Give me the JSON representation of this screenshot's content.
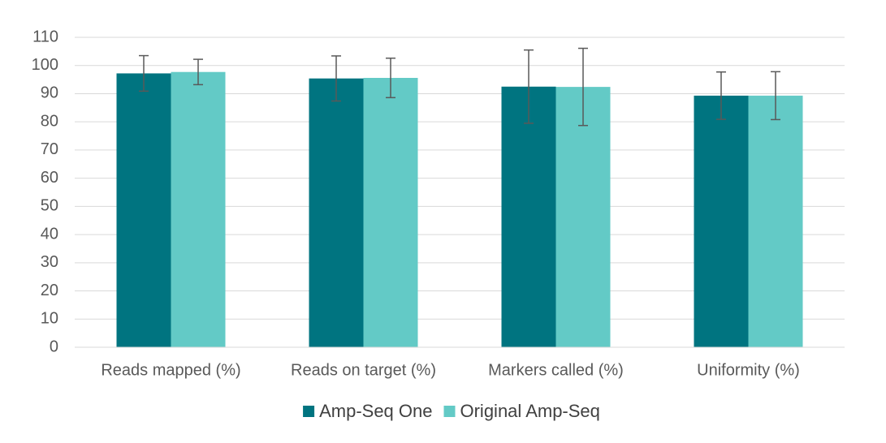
{
  "chart_data": {
    "type": "bar",
    "categories": [
      "Reads mapped (%)",
      "Reads on target (%)",
      "Markers called (%)",
      "Uniformity (%)"
    ],
    "series": [
      {
        "name": "Amp-Seq One",
        "color": "#007480",
        "values": [
          97.2,
          95.4,
          92.5,
          89.3
        ],
        "errors": [
          6.3,
          8.0,
          13.0,
          8.4
        ]
      },
      {
        "name": "Original Amp-Seq",
        "color": "#63cac6",
        "values": [
          97.7,
          95.6,
          92.4,
          89.3
        ],
        "errors": [
          4.5,
          7.0,
          13.7,
          8.5
        ]
      }
    ],
    "ylim": [
      0,
      110
    ],
    "yticks": [
      0,
      10,
      20,
      30,
      40,
      50,
      60,
      70,
      80,
      90,
      100,
      110
    ],
    "grid": true,
    "legend": "bottom",
    "error_color": "#595959"
  }
}
